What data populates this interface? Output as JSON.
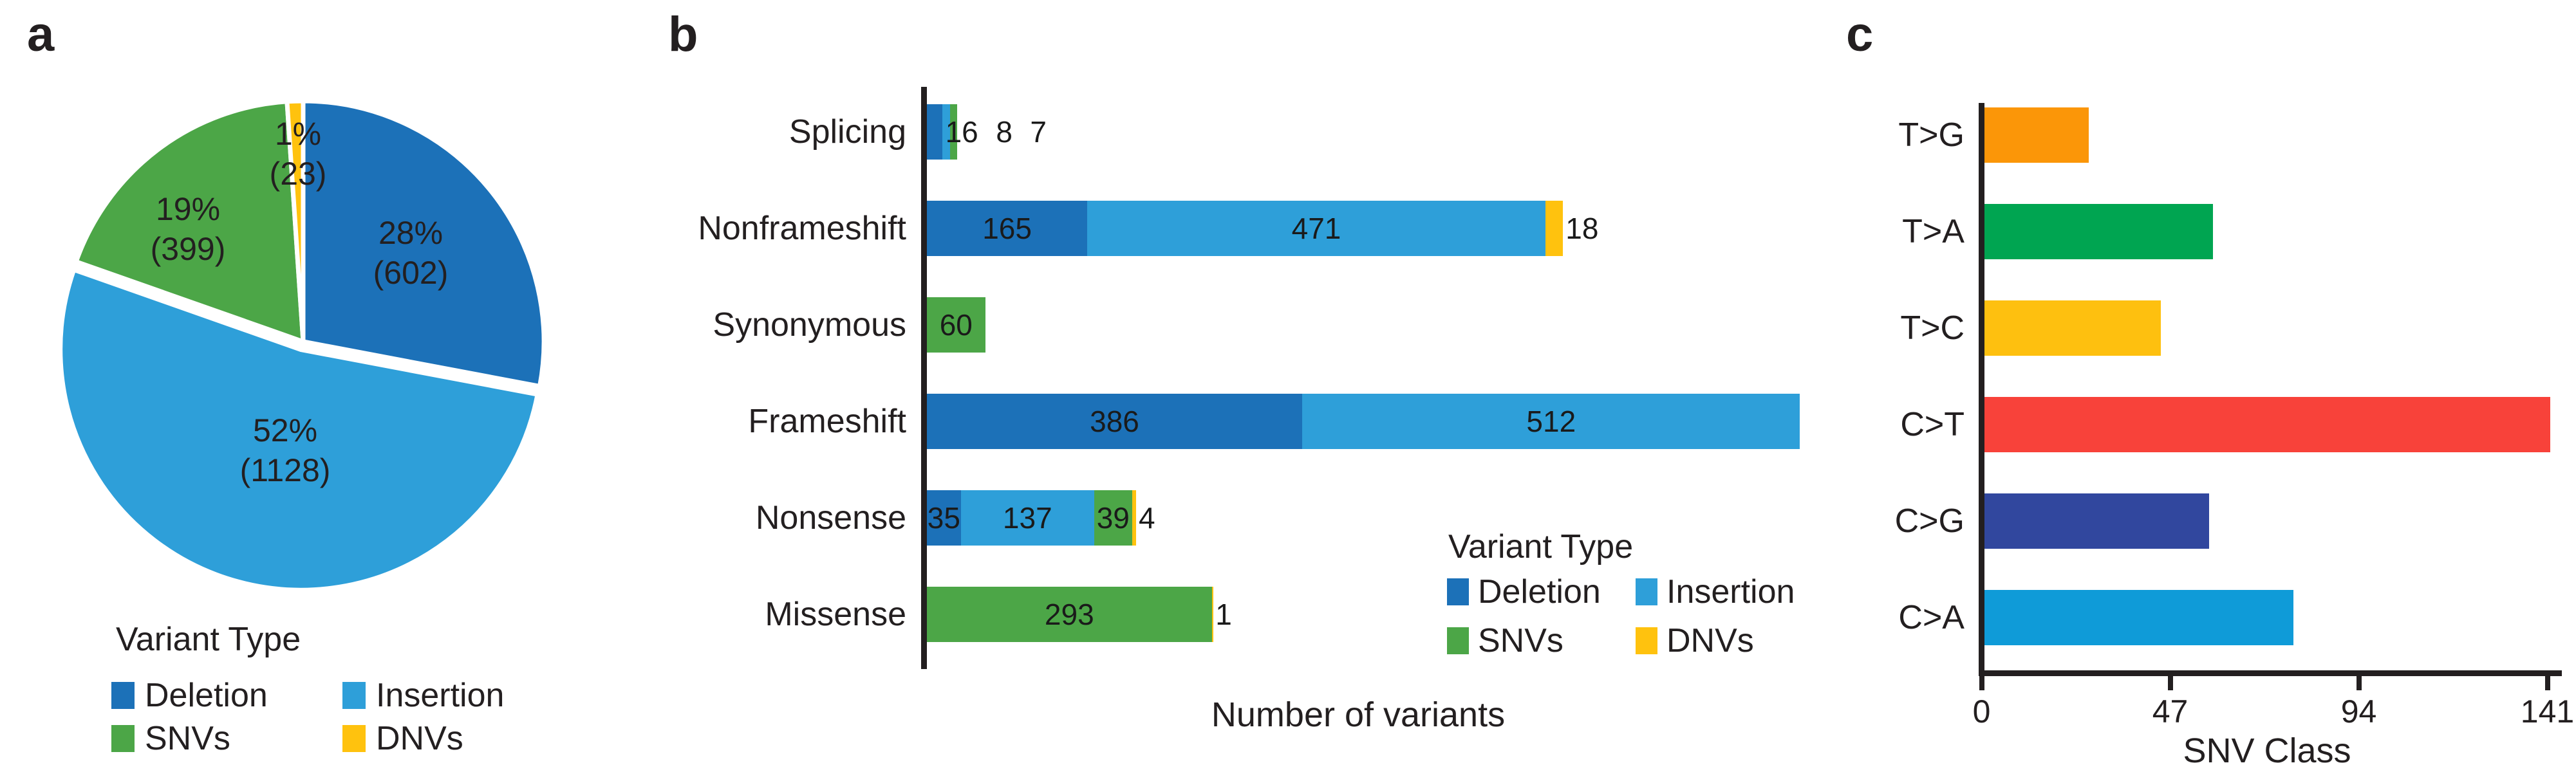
{
  "legend": {
    "title": "Variant Type",
    "items": [
      {
        "label": "Deletion",
        "color": "#1C71B8"
      },
      {
        "label": "Insertion",
        "color": "#2E9FD9"
      },
      {
        "label": "SNVs",
        "color": "#4CA647"
      },
      {
        "label": "DNVs",
        "color": "#FFC20E"
      }
    ]
  },
  "panels": {
    "a": {
      "label": "a"
    },
    "b": {
      "label": "b",
      "xlabel": "Number of variants"
    },
    "c": {
      "label": "c",
      "xlabel": "SNV Class",
      "xticks": [
        "0",
        "47",
        "94",
        "141"
      ]
    }
  },
  "chart_data": [
    {
      "id": "panel-a",
      "type": "pie",
      "legend_title": "Variant Type",
      "labels": [
        "Deletion",
        "Insertion",
        "SNVs",
        "DNVs"
      ],
      "values": [
        602,
        1128,
        399,
        23
      ],
      "percent_labels": [
        "28%",
        "52%",
        "19%",
        "1%"
      ],
      "count_labels": [
        "(602)",
        "(1128)",
        "(399)",
        "(23)"
      ],
      "colors": [
        "#1C71B8",
        "#2E9FD9",
        "#4CA647",
        "#FFC20E"
      ],
      "start_angle_deg_from_top": 0,
      "direction": "clockwise",
      "legend_position": "bottom-left"
    },
    {
      "id": "panel-b",
      "type": "bar",
      "orientation": "horizontal",
      "stacked": true,
      "categories": [
        "Splicing",
        "Nonframeshift",
        "Synonymous",
        "Frameshift",
        "Nonsense",
        "Missense"
      ],
      "series": [
        {
          "name": "Deletion",
          "color": "#1C71B8",
          "values": [
            16,
            165,
            0,
            386,
            35,
            0
          ]
        },
        {
          "name": "Insertion",
          "color": "#2E9FD9",
          "values": [
            8,
            471,
            0,
            512,
            137,
            0
          ]
        },
        {
          "name": "SNVs",
          "color": "#4CA647",
          "values": [
            7,
            0,
            60,
            0,
            39,
            293
          ]
        },
        {
          "name": "DNVs",
          "color": "#FFC20E",
          "values": [
            0,
            18,
            0,
            0,
            4,
            1
          ]
        }
      ],
      "xlabel": "Number of variants",
      "xlim": [
        0,
        898
      ],
      "grid": false,
      "legend_title": "Variant Type",
      "legend_position": "bottom-right"
    },
    {
      "id": "panel-c",
      "type": "bar",
      "orientation": "horizontal",
      "categories": [
        "T>G",
        "T>A",
        "T>C",
        "C>T",
        "C>G",
        "C>A"
      ],
      "values": [
        26,
        57,
        44,
        141,
        56,
        77
      ],
      "colors": [
        "#FB9608",
        "#00A551",
        "#FEC00F",
        "#F8423A",
        "#31479E",
        "#0F9BD8"
      ],
      "xlabel": "SNV Class",
      "xticks": [
        0,
        47,
        94,
        141
      ],
      "xlim": [
        0,
        141
      ],
      "grid": false
    }
  ]
}
